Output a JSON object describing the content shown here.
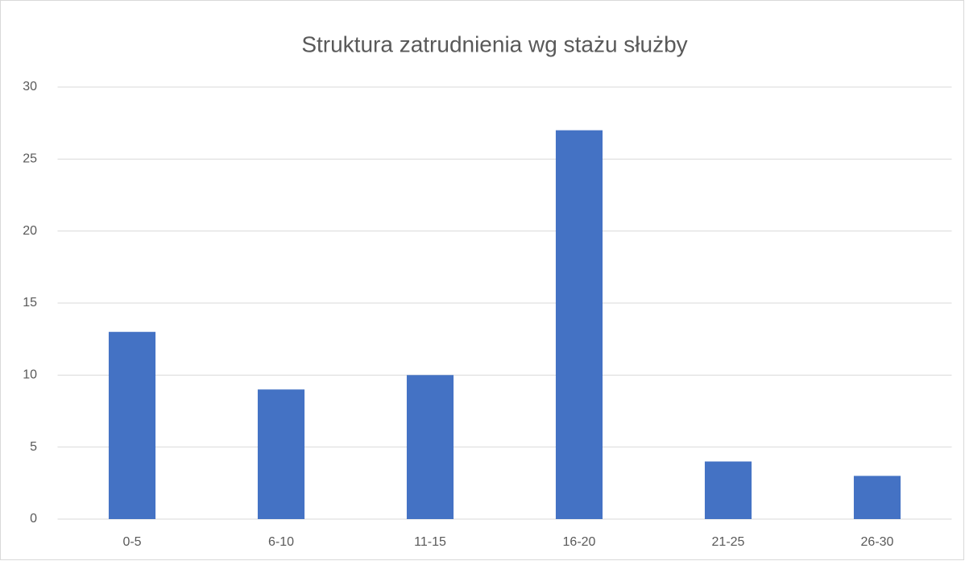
{
  "chart_data": {
    "type": "bar",
    "title": "Struktura zatrudnienia wg stażu służby",
    "categories": [
      "0-5",
      "6-10",
      "11-15",
      "16-20",
      "21-25",
      "26-30"
    ],
    "values": [
      13,
      9,
      10,
      27,
      4,
      3
    ],
    "color": "#4472c4",
    "ylim": [
      0,
      30
    ],
    "yticks": [
      0,
      5,
      10,
      15,
      20,
      25,
      30
    ],
    "grid": true
  }
}
